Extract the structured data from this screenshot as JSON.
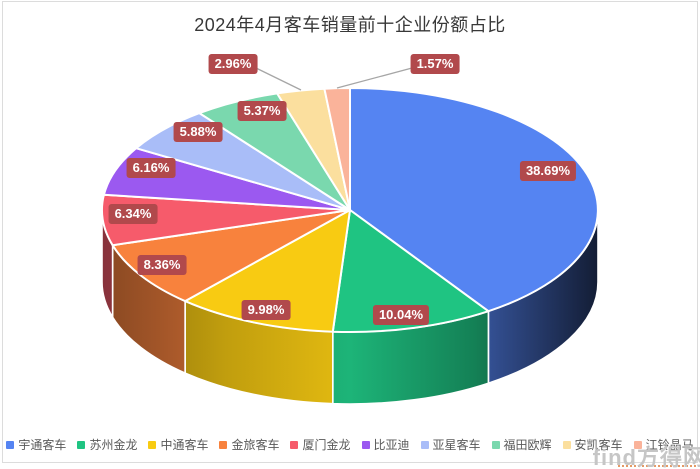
{
  "watermark": {
    "text": "find方得网"
  },
  "chart_data": {
    "type": "pie",
    "style": "3d-pie",
    "title": "2024年4月客车销量前十企业份额占比",
    "unit": "%",
    "legend_position": "bottom",
    "label_bg_color": "#b1494c",
    "label_text_color": "#ffffff",
    "categories": [
      "宇通客车",
      "苏州金龙",
      "中通客车",
      "金旅客车",
      "厦门金龙",
      "比亚迪",
      "亚星客车",
      "福田欧辉",
      "安凯客车",
      "江铃晶马"
    ],
    "values": [
      38.69,
      10.04,
      9.98,
      8.36,
      6.34,
      6.16,
      5.88,
      5.37,
      2.96,
      1.57
    ],
    "labels": [
      "38.69%",
      "10.04%",
      "9.98%",
      "8.36%",
      "6.34%",
      "6.16%",
      "5.88%",
      "5.37%",
      "2.96%",
      "1.57%"
    ],
    "colors": [
      "#5584f2",
      "#1fc482",
      "#f8cb12",
      "#f8823d",
      "#f65b6b",
      "#9b59f0",
      "#a9bdf8",
      "#7ad8ae",
      "#fbdf9e",
      "#fab39a"
    ]
  }
}
